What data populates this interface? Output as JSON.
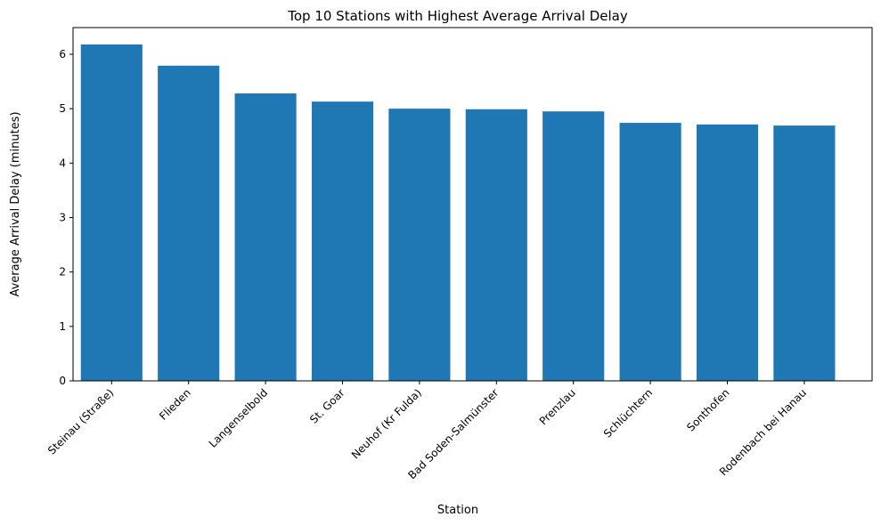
{
  "chart_data": {
    "type": "bar",
    "title": "Top 10 Stations with Highest Average Arrival Delay",
    "xlabel": "Station",
    "ylabel": "Average Arrival Delay (minutes)",
    "categories": [
      "Steinau (Straße)",
      "Flieden",
      "Langenselbold",
      "St. Goar",
      "Neuhof (Kr Fulda)",
      "Bad Soden-Salmünster",
      "Prenzlau",
      "Schlüchtern",
      "Sonthofen",
      "Rodenbach bei Hanau"
    ],
    "values": [
      6.18,
      5.79,
      5.28,
      5.13,
      5.0,
      4.99,
      4.95,
      4.74,
      4.71,
      4.69
    ],
    "ylim": [
      0,
      6.49
    ],
    "yticks": [
      0,
      1,
      2,
      3,
      4,
      5,
      6
    ],
    "grid": false,
    "bar_color": "#1f77b4"
  }
}
